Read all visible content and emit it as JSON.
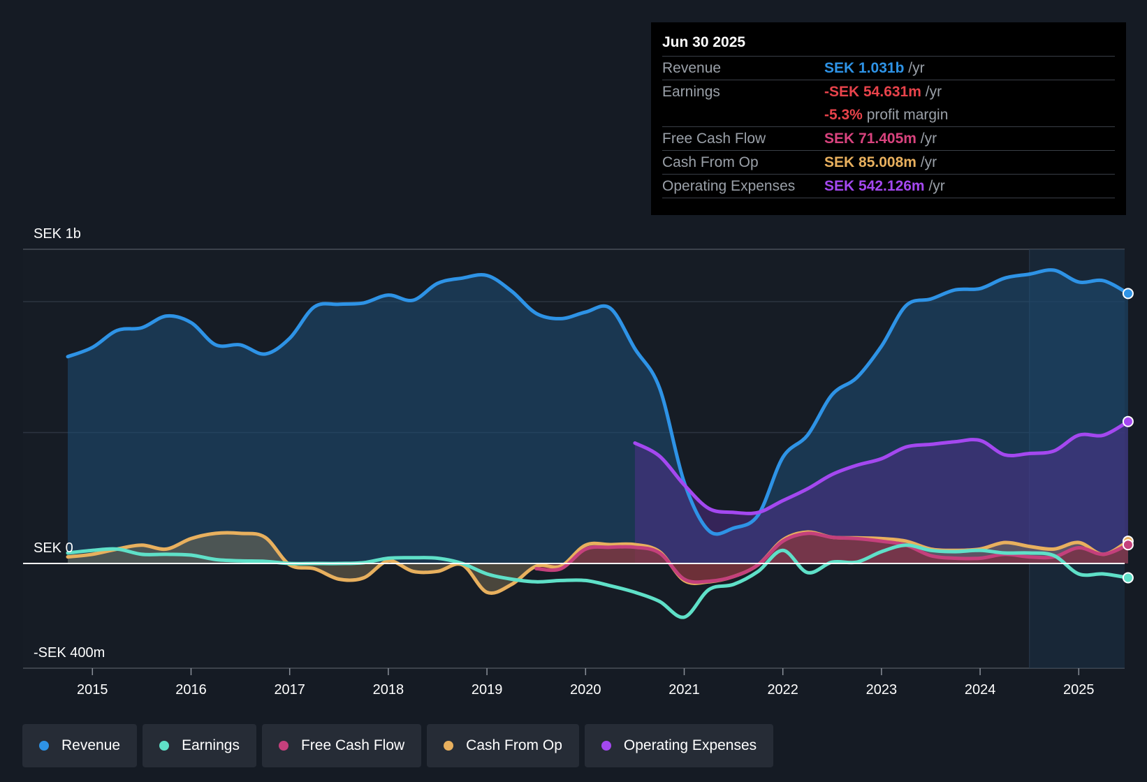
{
  "tooltip": {
    "date": "Jun 30 2025",
    "rows": [
      {
        "label": "Revenue",
        "value": "SEK 1.031b",
        "unit": " /yr",
        "color": "#2e93e6"
      },
      {
        "label": "Earnings",
        "value": "-SEK 54.631m",
        "unit": " /yr",
        "color": "#e8434b"
      },
      {
        "label": "",
        "value": "-5.3%",
        "unit": " profit margin",
        "color": "#e8434b"
      },
      {
        "label": "Free Cash Flow",
        "value": "SEK 71.405m",
        "unit": " /yr",
        "color": "#d9437e"
      },
      {
        "label": "Cash From Op",
        "value": "SEK 85.008m",
        "unit": " /yr",
        "color": "#e8b05e"
      },
      {
        "label": "Operating Expenses",
        "value": "SEK 542.126m",
        "unit": " /yr",
        "color": "#a448f0"
      }
    ]
  },
  "legend": [
    {
      "label": "Revenue",
      "color": "#2e93e6"
    },
    {
      "label": "Earnings",
      "color": "#5fe0c8"
    },
    {
      "label": "Free Cash Flow",
      "color": "#c4407c"
    },
    {
      "label": "Cash From Op",
      "color": "#e8b05e"
    },
    {
      "label": "Operating Expenses",
      "color": "#a448f0"
    }
  ],
  "chart_data": {
    "type": "line",
    "title": "",
    "xlabel": "",
    "ylabel": "SEK",
    "ylim": [
      -400,
      1200
    ],
    "xlim": [
      2014.75,
      2025.5
    ],
    "y_tick_labels": [
      {
        "value": 1200,
        "label": "SEK 1b"
      },
      {
        "value": 0,
        "label": "SEK 0"
      },
      {
        "value": -400,
        "label": "-SEK 400m"
      }
    ],
    "x_ticks": [
      2015,
      2016,
      2017,
      2018,
      2019,
      2020,
      2021,
      2022,
      2023,
      2024,
      2025
    ],
    "x_tick_labels": [
      "2015",
      "2016",
      "2017",
      "2018",
      "2019",
      "2020",
      "2021",
      "2022",
      "2023",
      "2024",
      "2025"
    ],
    "series": [
      {
        "name": "Revenue",
        "color": "#2e93e6",
        "fill": true,
        "x": [
          2014.75,
          2015.0,
          2015.25,
          2015.5,
          2015.75,
          2016.0,
          2016.25,
          2016.5,
          2016.75,
          2017.0,
          2017.25,
          2017.5,
          2017.75,
          2018.0,
          2018.25,
          2018.5,
          2018.75,
          2019.0,
          2019.25,
          2019.5,
          2019.75,
          2020.0,
          2020.25,
          2020.5,
          2020.75,
          2021.0,
          2021.25,
          2021.5,
          2021.75,
          2022.0,
          2022.25,
          2022.5,
          2022.75,
          2023.0,
          2023.25,
          2023.5,
          2023.75,
          2024.0,
          2024.25,
          2024.5,
          2024.75,
          2025.0,
          2025.25,
          2025.5
        ],
        "values": [
          790,
          825,
          890,
          900,
          945,
          920,
          835,
          835,
          800,
          860,
          980,
          990,
          995,
          1025,
          1005,
          1070,
          1090,
          1100,
          1040,
          955,
          935,
          960,
          975,
          820,
          670,
          310,
          125,
          135,
          185,
          405,
          490,
          645,
          710,
          830,
          985,
          1010,
          1045,
          1050,
          1090,
          1105,
          1120,
          1075,
          1080,
          1031
        ]
      },
      {
        "name": "Operating Expenses",
        "color": "#a448f0",
        "fill": true,
        "x": [
          2020.5,
          2020.75,
          2021.0,
          2021.25,
          2021.5,
          2021.75,
          2022.0,
          2022.25,
          2022.5,
          2022.75,
          2023.0,
          2023.25,
          2023.5,
          2023.75,
          2024.0,
          2024.25,
          2024.5,
          2024.75,
          2025.0,
          2025.25,
          2025.5
        ],
        "values": [
          460,
          410,
          300,
          210,
          195,
          195,
          240,
          285,
          340,
          375,
          400,
          445,
          455,
          465,
          470,
          415,
          420,
          430,
          490,
          490,
          542.126
        ]
      },
      {
        "name": "Cash From Op",
        "color": "#e8b05e",
        "fill": true,
        "x": [
          2014.75,
          2015.0,
          2015.25,
          2015.5,
          2015.75,
          2016.0,
          2016.25,
          2016.5,
          2016.75,
          2017.0,
          2017.25,
          2017.5,
          2017.75,
          2018.0,
          2018.25,
          2018.5,
          2018.75,
          2019.0,
          2019.25,
          2019.5,
          2019.75,
          2020.0,
          2020.25,
          2020.5,
          2020.75,
          2021.0,
          2021.25,
          2021.5,
          2021.75,
          2022.0,
          2022.25,
          2022.5,
          2022.75,
          2023.0,
          2023.25,
          2023.5,
          2023.75,
          2024.0,
          2024.25,
          2024.5,
          2024.75,
          2025.0,
          2025.25,
          2025.5
        ],
        "values": [
          25,
          35,
          55,
          70,
          55,
          95,
          115,
          115,
          100,
          -5,
          -20,
          -60,
          -55,
          10,
          -30,
          -30,
          -5,
          -110,
          -80,
          -10,
          -10,
          70,
          72,
          72,
          45,
          -65,
          -70,
          -50,
          -5,
          90,
          120,
          100,
          98,
          95,
          85,
          55,
          50,
          55,
          80,
          65,
          55,
          80,
          35,
          85.008
        ]
      },
      {
        "name": "Free Cash Flow",
        "color": "#c4407c",
        "fill": true,
        "x": [
          2019.5,
          2019.75,
          2020.0,
          2020.25,
          2020.5,
          2020.75,
          2021.0,
          2021.25,
          2021.5,
          2021.75,
          2022.0,
          2022.25,
          2022.5,
          2022.75,
          2023.0,
          2023.25,
          2023.5,
          2023.75,
          2024.0,
          2024.25,
          2024.5,
          2024.75,
          2025.0,
          2025.25,
          2025.5
        ],
        "values": [
          -20,
          -20,
          55,
          62,
          62,
          40,
          -60,
          -68,
          -50,
          -5,
          85,
          115,
          100,
          95,
          85,
          70,
          30,
          20,
          20,
          35,
          25,
          25,
          60,
          35,
          71.405
        ]
      },
      {
        "name": "Earnings",
        "color": "#5fe0c8",
        "fill": false,
        "x": [
          2014.75,
          2015.0,
          2015.25,
          2015.5,
          2015.75,
          2016.0,
          2016.25,
          2016.5,
          2016.75,
          2017.0,
          2017.25,
          2017.5,
          2017.75,
          2018.0,
          2018.25,
          2018.5,
          2018.75,
          2019.0,
          2019.25,
          2019.5,
          2019.75,
          2020.0,
          2020.25,
          2020.5,
          2020.75,
          2021.0,
          2021.25,
          2021.5,
          2021.75,
          2022.0,
          2022.25,
          2022.5,
          2022.75,
          2023.0,
          2023.25,
          2023.5,
          2023.75,
          2024.0,
          2024.25,
          2024.5,
          2024.75,
          2025.0,
          2025.25,
          2025.5
        ],
        "values": [
          40,
          50,
          55,
          35,
          35,
          32,
          15,
          10,
          8,
          0,
          0,
          0,
          3,
          20,
          22,
          20,
          0,
          -40,
          -60,
          -70,
          -65,
          -65,
          -85,
          -110,
          -145,
          -205,
          -100,
          -80,
          -30,
          50,
          -35,
          5,
          5,
          45,
          70,
          50,
          45,
          50,
          40,
          40,
          30,
          -40,
          -40,
          -54.631
        ]
      }
    ]
  }
}
